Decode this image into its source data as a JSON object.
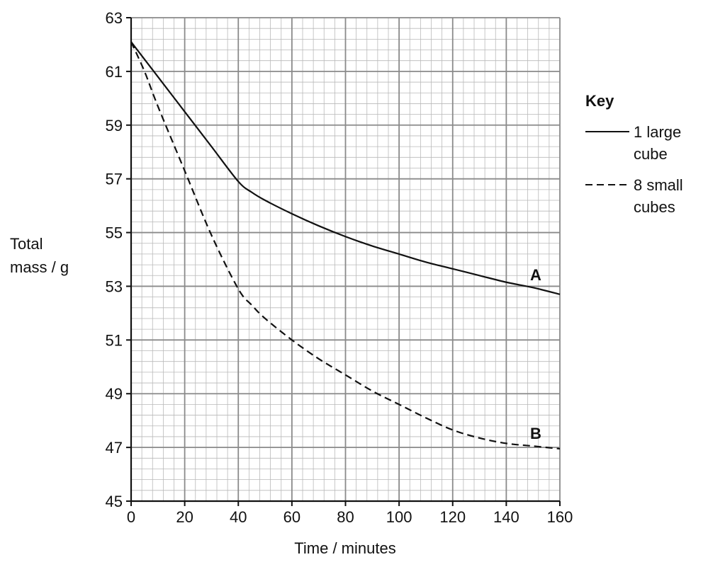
{
  "chart_data": {
    "type": "line",
    "xlabel": "Time / minutes",
    "ylabel": [
      "Total",
      "mass / g"
    ],
    "xlim": [
      0,
      160
    ],
    "ylim": [
      45,
      63
    ],
    "x_major_ticks": [
      0,
      20,
      40,
      60,
      80,
      100,
      120,
      140,
      160
    ],
    "y_major_ticks": [
      45,
      47,
      49,
      51,
      53,
      55,
      57,
      59,
      61,
      63
    ],
    "x_minor_step": 4,
    "y_minor_step": 0.4,
    "grid": true,
    "legend": {
      "title": "Key",
      "placement": "right",
      "entries": [
        {
          "label": [
            "1 large",
            "cube"
          ],
          "style": "solid"
        },
        {
          "label": [
            "8 small",
            "cubes"
          ],
          "style": "dashed"
        }
      ]
    },
    "series": [
      {
        "label": "A",
        "style": "solid",
        "x": [
          0,
          10,
          20,
          30,
          40,
          45,
          50,
          60,
          70,
          80,
          90,
          100,
          110,
          120,
          130,
          140,
          150,
          160
        ],
        "y": [
          62.1,
          60.8,
          59.5,
          58.2,
          56.9,
          56.5,
          56.2,
          55.7,
          55.25,
          54.85,
          54.5,
          54.2,
          53.9,
          53.65,
          53.4,
          53.15,
          52.95,
          52.7
        ]
      },
      {
        "label": "B",
        "style": "dashed",
        "x": [
          0,
          5,
          10,
          20,
          30,
          40,
          45,
          50,
          60,
          70,
          80,
          90,
          100,
          110,
          120,
          130,
          140,
          150,
          160
        ],
        "y": [
          62.1,
          61.0,
          59.7,
          57.3,
          54.9,
          52.9,
          52.3,
          51.8,
          51.0,
          50.3,
          49.7,
          49.1,
          48.6,
          48.1,
          47.65,
          47.35,
          47.15,
          47.05,
          46.95
        ]
      }
    ]
  }
}
